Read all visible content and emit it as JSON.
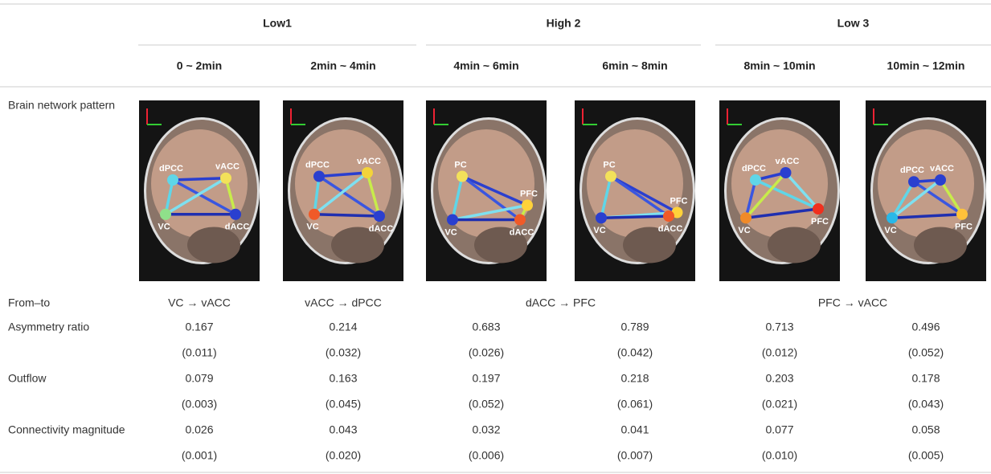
{
  "table": {
    "groups": [
      "Low1",
      "High 2",
      "Low 3"
    ],
    "periods": [
      "0 ~ 2min",
      "2min ~ 4min",
      "4min ~ 6min",
      "6min ~ 8min",
      "8min ~ 10min",
      "10min ~ 12min"
    ],
    "pattern_label": "Brain network pattern",
    "images": [
      {
        "nodes": [
          "dPCC",
          "vACC",
          "VC",
          "dACC"
        ]
      },
      {
        "nodes": [
          "dPCC",
          "vACC",
          "VC",
          "dACC"
        ]
      },
      {
        "nodes": [
          "PC",
          "PFC",
          "VC",
          "dACC"
        ]
      },
      {
        "nodes": [
          "PC",
          "PFC",
          "VC",
          "dACC"
        ]
      },
      {
        "nodes": [
          "dPCC",
          "vACC",
          "PFC",
          "VC"
        ]
      },
      {
        "nodes": [
          "dPCC",
          "vACC",
          "VC",
          "PFC"
        ]
      }
    ],
    "from_to_label": "From–to",
    "from_to": [
      "VC → vACC",
      "vACC → dPCC",
      "dACC → PFC",
      "PFC → vACC"
    ],
    "rows": [
      {
        "label": "Asymmetry ratio",
        "values": [
          0.167,
          0.214,
          0.683,
          0.789,
          0.713,
          0.496
        ],
        "errors": [
          "(0.011)",
          "(0.032)",
          "(0.026)",
          "(0.042)",
          "(0.012)",
          "(0.052)"
        ]
      },
      {
        "label": "Outflow",
        "values": [
          0.079,
          0.163,
          0.197,
          0.218,
          0.203,
          0.178
        ],
        "errors": [
          "(0.003)",
          "(0.045)",
          "(0.052)",
          "(0.061)",
          "(0.021)",
          "(0.043)"
        ]
      },
      {
        "label": "Connectivity magnitude",
        "values": [
          0.026,
          0.043,
          0.032,
          0.041,
          0.077,
          0.058
        ],
        "errors": [
          "(0.001)",
          "(0.020)",
          "(0.006)",
          "(0.007)",
          "(0.010)",
          "(0.005)"
        ]
      }
    ]
  }
}
